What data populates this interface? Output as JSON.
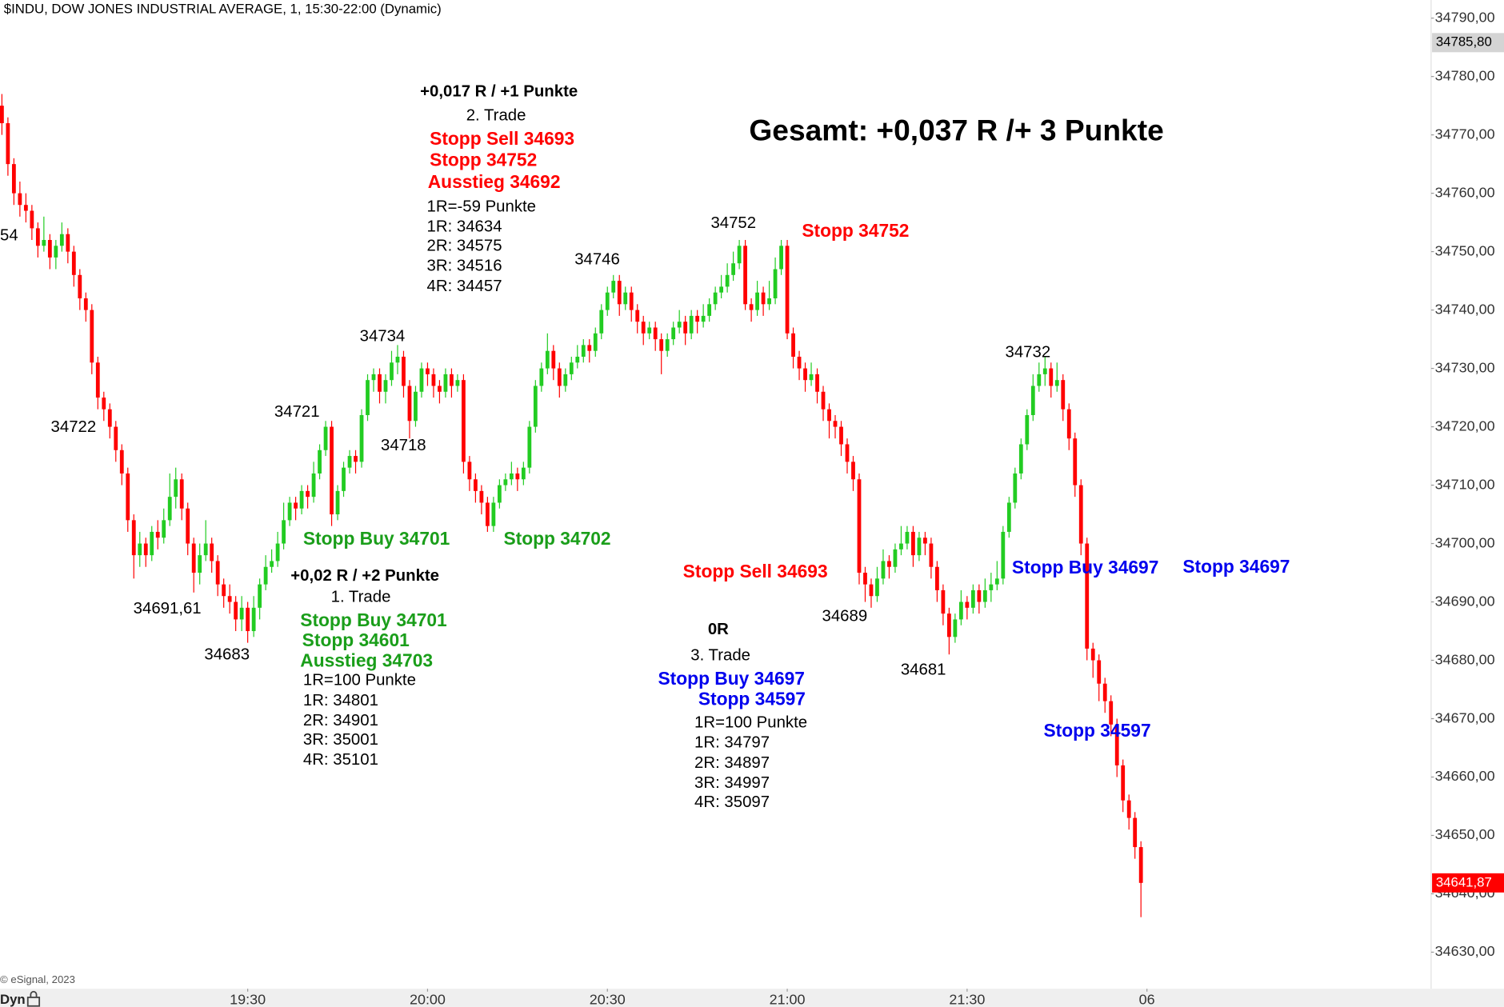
{
  "chart_data": {
    "type": "candlestick",
    "title": "$INDU, DOW JONES INDUSTRIAL AVERAGE, 1, 15:30-22:00 (Dynamic)",
    "source": "© eSignal, 2023",
    "badge": "Dyn",
    "up_color": "#22cc22",
    "down_color": "#ff0000",
    "x": [
      "18:49",
      "18:50",
      "18:51",
      "18:52",
      "18:53",
      "18:54",
      "18:55",
      "18:56",
      "18:57",
      "18:58",
      "18:59",
      "19:00",
      "19:01",
      "19:02",
      "19:03",
      "19:04",
      "19:05",
      "19:06",
      "19:07",
      "19:08",
      "19:09",
      "19:10",
      "19:11",
      "19:12",
      "19:13",
      "19:14",
      "19:15",
      "19:16",
      "19:17",
      "19:18",
      "19:19",
      "19:20",
      "19:21",
      "19:22",
      "19:23",
      "19:24",
      "19:25",
      "19:26",
      "19:27",
      "19:28",
      "19:29",
      "19:30",
      "19:31",
      "19:32",
      "19:33",
      "19:34",
      "19:35",
      "19:36",
      "19:37",
      "19:38",
      "19:39",
      "19:40",
      "19:41",
      "19:42",
      "19:43",
      "19:44",
      "19:45",
      "19:46",
      "19:47",
      "19:48",
      "19:49",
      "19:50",
      "19:51",
      "19:52",
      "19:53",
      "19:54",
      "19:55",
      "19:56",
      "19:57",
      "19:58",
      "19:59",
      "20:00",
      "20:01",
      "20:02",
      "20:03",
      "20:04",
      "20:05",
      "20:06",
      "20:07",
      "20:08",
      "20:09",
      "20:10",
      "20:11",
      "20:12",
      "20:13",
      "20:14",
      "20:15",
      "20:16",
      "20:17",
      "20:18",
      "20:19",
      "20:20",
      "20:21",
      "20:22",
      "20:23",
      "20:24",
      "20:25",
      "20:26",
      "20:27",
      "20:28",
      "20:29",
      "20:30",
      "20:31",
      "20:32",
      "20:33",
      "20:34",
      "20:35",
      "20:36",
      "20:37",
      "20:38",
      "20:39",
      "20:40",
      "20:41",
      "20:42",
      "20:43",
      "20:44",
      "20:45",
      "20:46",
      "20:47",
      "20:48",
      "20:49",
      "20:50",
      "20:51",
      "20:52",
      "20:53",
      "20:54",
      "20:55",
      "20:56",
      "20:57",
      "20:58",
      "20:59",
      "21:00",
      "21:01",
      "21:02",
      "21:03",
      "21:04",
      "21:05",
      "21:06",
      "21:07",
      "21:08",
      "21:09",
      "21:10",
      "21:11",
      "21:12",
      "21:13",
      "21:14",
      "21:15",
      "21:16",
      "21:17",
      "21:18",
      "21:19",
      "21:20",
      "21:21",
      "21:22",
      "21:23",
      "21:24",
      "21:25",
      "21:26",
      "21:27",
      "21:28",
      "21:29",
      "21:30",
      "21:31",
      "21:32",
      "21:33",
      "21:34",
      "21:35",
      "21:36",
      "21:37",
      "21:38",
      "21:39",
      "21:40",
      "21:41",
      "21:42",
      "21:43",
      "21:44",
      "21:45",
      "21:46",
      "21:47",
      "21:48",
      "21:49",
      "21:50",
      "21:51",
      "21:52",
      "21:53",
      "21:54",
      "21:55",
      "21:56",
      "21:57",
      "21:58",
      "21:59"
    ],
    "open": [
      34775,
      34772,
      34765,
      34760,
      34758,
      34757,
      34754,
      34751,
      34752,
      34749,
      34751,
      34753,
      34750,
      34746,
      34742,
      34740,
      34731,
      34725,
      34723,
      34720,
      34716,
      34712,
      34704,
      34698,
      34700,
      34698,
      34702,
      34701,
      34704,
      34708,
      34711,
      34706,
      34700,
      34695,
      34698,
      34700,
      34697,
      34693,
      34691,
      34690,
      34687,
      34689,
      34685,
      34689,
      34693,
      34696,
      34697,
      34700,
      34704,
      34707,
      34706,
      34709,
      34708,
      34712,
      34716,
      34720,
      34705,
      34709,
      34713,
      34715,
      34714,
      34722,
      34728,
      34729,
      34726,
      34728,
      34731,
      34732,
      34727,
      34721,
      34726,
      34730,
      34729,
      34727,
      34726,
      34729,
      34727,
      34728,
      34714,
      34711,
      34709,
      34707,
      34703,
      34707,
      34710,
      34711,
      34712,
      34711,
      34713,
      34720,
      34727,
      34730,
      34733,
      34730,
      34727,
      34729,
      34731,
      34732,
      34734,
      34733,
      34736,
      34740,
      34743,
      34745,
      34741,
      34743,
      34740,
      34738,
      34736,
      34737,
      34735,
      34733,
      34735,
      34737,
      34738,
      34736,
      34739,
      34738,
      34739,
      34741,
      34743,
      34744,
      34746,
      34748,
      34751,
      34741,
      34740,
      34743,
      34741,
      34742,
      34747,
      34751,
      34736,
      34732,
      34730,
      34728,
      34729,
      34726,
      34723,
      34721,
      34720,
      34717,
      34714,
      34711,
      34695,
      34693,
      34691,
      34694,
      34697,
      34696,
      34699,
      34700,
      34702,
      34698,
      34701,
      34700,
      34696,
      34692,
      34688,
      34684,
      34687,
      34690,
      34689,
      34692,
      34690,
      34692,
      34693,
      34694,
      34702,
      34707,
      34712,
      34717,
      34722,
      34727,
      34729,
      34730,
      34727,
      34728,
      34723,
      34718,
      34710,
      34700,
      34682,
      34680,
      34676,
      34673,
      34669,
      34662,
      34656,
      34653,
      34648
    ],
    "high": [
      34777,
      34773,
      34766,
      34762,
      34760,
      34758,
      34755,
      34756,
      34753,
      34752,
      34755,
      34754,
      34751,
      34747,
      34743,
      34741,
      34732,
      34726,
      34724,
      34721,
      34717,
      34713,
      34705,
      34702,
      34701,
      34703,
      34704,
      34706,
      34712,
      34713,
      34712,
      34707,
      34701,
      34700,
      34704,
      34701,
      34698,
      34694,
      34693,
      34691,
      34691,
      34690,
      34691,
      34694,
      34698,
      34699,
      34702,
      34707,
      34708,
      34708,
      34710,
      34710,
      34714,
      34717,
      34721,
      34721,
      34710,
      34714,
      34716,
      34716,
      34723,
      34729,
      34730,
      34730,
      34729,
      34733,
      34734,
      34733,
      34728,
      34727,
      34731,
      34731,
      34730,
      34728,
      34730,
      34730,
      34729,
      34729,
      34715,
      34712,
      34710,
      34708,
      34708,
      34711,
      34712,
      34714,
      34713,
      34714,
      34721,
      34728,
      34731,
      34736,
      34734,
      34731,
      34730,
      34732,
      34734,
      34735,
      34735,
      34737,
      34741,
      34744,
      34746,
      34746,
      34744,
      34744,
      34741,
      34739,
      34738,
      34738,
      34736,
      34736,
      34738,
      34740,
      34739,
      34740,
      34740,
      34741,
      34742,
      34744,
      34746,
      34748,
      34750,
      34752,
      34752,
      34742,
      34745,
      34744,
      34745,
      34749,
      34752,
      34752,
      34737,
      34733,
      34731,
      34731,
      34730,
      34727,
      34724,
      34722,
      34721,
      34718,
      34715,
      34712,
      34696,
      34694,
      34696,
      34699,
      34698,
      34700,
      34703,
      34703,
      34703,
      34702,
      34702,
      34701,
      34697,
      34693,
      34689,
      34688,
      34692,
      34691,
      34693,
      34693,
      34694,
      34695,
      34697,
      34703,
      34708,
      34713,
      34718,
      34723,
      34729,
      34731,
      34732,
      34731,
      34731,
      34729,
      34724,
      34719,
      34711,
      34701,
      34683,
      34681,
      34677,
      34674,
      34670,
      34663,
      34657,
      34654,
      34649
    ],
    "low": [
      34770,
      34763,
      34758,
      34756,
      34755,
      34752,
      34749,
      34750,
      34747,
      34747,
      34750,
      34748,
      34744,
      34740,
      34738,
      34729,
      34723,
      34721,
      34718,
      34714,
      34710,
      34702,
      34694,
      34696,
      34696,
      34697,
      34699,
      34700,
      34703,
      34706,
      34704,
      34698,
      34691.61,
      34693,
      34697,
      34695,
      34691,
      34689,
      34688,
      34685,
      34685,
      34683,
      34684,
      34687,
      34692,
      34695,
      34696,
      34699,
      34703,
      34704,
      34705,
      34706,
      34707,
      34711,
      34715,
      34703,
      34704,
      34708,
      34712,
      34712,
      34713,
      34721,
      34726,
      34724,
      34724,
      34727,
      34729,
      34725,
      34718,
      34720,
      34725,
      34727,
      34725,
      34724,
      34725,
      34725,
      34726,
      34712,
      34709,
      34707,
      34705,
      34702,
      34702,
      34706,
      34709,
      34710,
      34709,
      34710,
      34712,
      34719,
      34726,
      34729,
      34728,
      34725,
      34726,
      34728,
      34730,
      34731,
      34731,
      34732,
      34735,
      34739,
      34742,
      34739,
      34740,
      34738,
      34736,
      34734,
      34735,
      34733,
      34729,
      34732,
      34734,
      34736,
      34734,
      34735,
      34736,
      34737,
      34738,
      34740,
      34742,
      34743,
      34745,
      34747,
      34740,
      34738,
      34739,
      34739,
      34740,
      34741,
      34746,
      34735,
      34730,
      34728,
      34726,
      34727,
      34724,
      34721,
      34718,
      34718,
      34715,
      34712,
      34709,
      34693,
      34690,
      34689,
      34690,
      34693,
      34694,
      34695,
      34698,
      34699,
      34696,
      34697,
      34698,
      34694,
      34690,
      34686,
      34681,
      34683,
      34686,
      34687,
      34688,
      34688,
      34689,
      34690,
      34692,
      34693,
      34701,
      34706,
      34711,
      34716,
      34721,
      34726,
      34727,
      34725,
      34726,
      34721,
      34716,
      34708,
      34698,
      34680,
      34677,
      34673,
      34671,
      34667,
      34660,
      34654,
      34651,
      34646,
      34636
    ],
    "close": [
      34772,
      34765,
      34760,
      34758,
      34757,
      34754,
      34751,
      34752,
      34749,
      34751,
      34753,
      34750,
      34746,
      34742,
      34740,
      34731,
      34725,
      34723,
      34720,
      34716,
      34712,
      34704,
      34698,
      34700,
      34698,
      34702,
      34701,
      34704,
      34708,
      34711,
      34706,
      34700,
      34695,
      34698,
      34700,
      34697,
      34693,
      34691,
      34690,
      34687,
      34689,
      34685,
      34689,
      34693,
      34696,
      34697,
      34700,
      34704,
      34707,
      34706,
      34709,
      34708,
      34712,
      34716,
      34720,
      34705,
      34709,
      34713,
      34715,
      34714,
      34722,
      34728,
      34729,
      34726,
      34728,
      34731,
      34732,
      34727,
      34721,
      34726,
      34730,
      34729,
      34727,
      34726,
      34729,
      34727,
      34728,
      34714,
      34711,
      34709,
      34707,
      34703,
      34707,
      34710,
      34711,
      34712,
      34711,
      34713,
      34720,
      34727,
      34730,
      34733,
      34730,
      34727,
      34729,
      34731,
      34732,
      34734,
      34733,
      34736,
      34740,
      34743,
      34745,
      34741,
      34743,
      34740,
      34738,
      34736,
      34737,
      34735,
      34733,
      34735,
      34737,
      34738,
      34736,
      34739,
      34738,
      34739,
      34741,
      34743,
      34744,
      34746,
      34748,
      34751,
      34741,
      34740,
      34743,
      34741,
      34742,
      34747,
      34751,
      34736,
      34732,
      34730,
      34728,
      34729,
      34726,
      34723,
      34721,
      34720,
      34717,
      34714,
      34711,
      34695,
      34693,
      34691,
      34694,
      34697,
      34696,
      34699,
      34700,
      34702,
      34698,
      34701,
      34700,
      34696,
      34692,
      34688,
      34684,
      34687,
      34690,
      34689,
      34692,
      34690,
      34692,
      34693,
      34694,
      34702,
      34707,
      34712,
      34717,
      34722,
      34727,
      34729,
      34730,
      34727,
      34728,
      34723,
      34718,
      34710,
      34700,
      34682,
      34680,
      34676,
      34673,
      34669,
      34662,
      34656,
      34653,
      34648,
      34641.87
    ],
    "ylim": [
      34623.9,
      34793.1
    ],
    "yticks": [
      {
        "value": 34630,
        "label": "34630,00"
      },
      {
        "value": 34640,
        "label": "34640,00"
      },
      {
        "value": 34650,
        "label": "34650,00"
      },
      {
        "value": 34660,
        "label": "34660,00"
      },
      {
        "value": 34670,
        "label": "34670,00"
      },
      {
        "value": 34680,
        "label": "34680,00"
      },
      {
        "value": 34690,
        "label": "34690,00"
      },
      {
        "value": 34700,
        "label": "34700,00"
      },
      {
        "value": 34710,
        "label": "34710,00"
      },
      {
        "value": 34720,
        "label": "34720,00"
      },
      {
        "value": 34730,
        "label": "34730,00"
      },
      {
        "value": 34740,
        "label": "34740,00"
      },
      {
        "value": 34750,
        "label": "34750,00"
      },
      {
        "value": 34760,
        "label": "34760,00"
      },
      {
        "value": 34770,
        "label": "34770,00"
      },
      {
        "value": 34780,
        "label": "34780,00"
      },
      {
        "value": 34790,
        "label": "34790,00"
      }
    ],
    "xticks": [
      "19:30",
      "20:00",
      "20:30",
      "21:00",
      "21:30",
      {
        "value": "22:00",
        "label": "06"
      }
    ],
    "price_labels": [
      {
        "value": 34785.8,
        "label": "34785,80",
        "color": "#d4d4d4",
        "text_color": "#000000"
      },
      {
        "value": 34641.87,
        "label": "34641,87",
        "color": "#ff0000",
        "text_color": "#ffffff"
      }
    ],
    "annotations": [
      {
        "text": "+0,017 R / +1 Punkte",
        "color": "#000000"
      },
      {
        "text": "2. Trade",
        "color": "#000000"
      },
      {
        "text": "Stopp Sell 34693",
        "color": "#ff0000"
      },
      {
        "text": "Stopp 34752",
        "color": "#ff0000"
      },
      {
        "text": "Ausstieg 34692",
        "color": "#ff0000"
      },
      {
        "text": "1R=-59 Punkte",
        "color": "#000000"
      },
      {
        "text": "1R: 34634",
        "color": "#000000"
      },
      {
        "text": "2R: 34575",
        "color": "#000000"
      },
      {
        "text": "3R: 34516",
        "color": "#000000"
      },
      {
        "text": "4R: 34457",
        "color": "#000000"
      },
      {
        "text": "Gesamt: +0,037 R /+ 3 Punkte",
        "color": "#000000"
      },
      {
        "text": "54",
        "color": "#000000"
      },
      {
        "text": "34722",
        "color": "#000000"
      },
      {
        "text": "34691,61",
        "color": "#000000"
      },
      {
        "text": "34683",
        "color": "#000000"
      },
      {
        "text": "34721",
        "color": "#000000"
      },
      {
        "text": "34734",
        "color": "#000000"
      },
      {
        "text": "34718",
        "color": "#000000"
      },
      {
        "text": "34746",
        "color": "#000000"
      },
      {
        "text": "34752",
        "color": "#000000"
      },
      {
        "text": "34689",
        "color": "#000000"
      },
      {
        "text": "34681",
        "color": "#000000"
      },
      {
        "text": "34732",
        "color": "#000000"
      },
      {
        "text": "Stopp 34752",
        "color": "#ff0000"
      },
      {
        "text": "Stopp Buy 34701",
        "color": "#1a9e1a"
      },
      {
        "text": "Stopp 34702",
        "color": "#1a9e1a"
      },
      {
        "text": "+0,02 R / +2 Punkte",
        "color": "#000000"
      },
      {
        "text": "1. Trade",
        "color": "#000000"
      },
      {
        "text": "Stopp Buy 34701",
        "color": "#1a9e1a"
      },
      {
        "text": "Stopp 34601",
        "color": "#1a9e1a"
      },
      {
        "text": "Ausstieg 34703",
        "color": "#1a9e1a"
      },
      {
        "text": "1R=100 Punkte",
        "color": "#000000"
      },
      {
        "text": "1R: 34801",
        "color": "#000000"
      },
      {
        "text": "2R: 34901",
        "color": "#000000"
      },
      {
        "text": "3R: 35001",
        "color": "#000000"
      },
      {
        "text": "4R: 35101",
        "color": "#000000"
      },
      {
        "text": "Stopp Sell 34693",
        "color": "#ff0000"
      },
      {
        "text": "0R",
        "color": "#000000"
      },
      {
        "text": "3. Trade",
        "color": "#000000"
      },
      {
        "text": "Stopp Buy 34697",
        "color": "#0000ee"
      },
      {
        "text": "Stopp 34597",
        "color": "#0000ee"
      },
      {
        "text": "1R=100 Punkte",
        "color": "#000000"
      },
      {
        "text": "1R: 34797",
        "color": "#000000"
      },
      {
        "text": "2R: 34897",
        "color": "#000000"
      },
      {
        "text": "3R: 34997",
        "color": "#000000"
      },
      {
        "text": "4R: 35097",
        "color": "#000000"
      },
      {
        "text": "Stopp Buy 34697",
        "color": "#0000ee"
      },
      {
        "text": "Stopp 34697",
        "color": "#0000ee"
      },
      {
        "text": "Stopp 34597",
        "color": "#0000ee"
      }
    ]
  }
}
